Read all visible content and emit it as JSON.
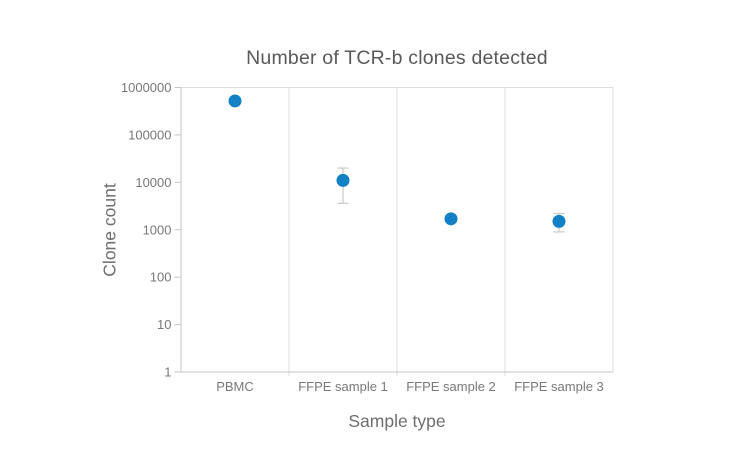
{
  "chart_data": {
    "type": "scatter",
    "title": "Number of TCR-b clones detected",
    "xlabel": "Sample type",
    "ylabel": "Clone count",
    "y_scale": "log",
    "ylim": [
      1,
      1000000
    ],
    "y_ticks": [
      1000000,
      100000,
      10000,
      1000,
      100,
      10,
      1
    ],
    "y_tick_labels": [
      "1000000",
      "100000",
      "10000",
      "1000",
      "100",
      "10",
      "1"
    ],
    "categories": [
      "PBMC",
      "FFPE sample 1",
      "FFPE sample 2",
      "FFPE sample 3"
    ],
    "series": [
      {
        "name": "Clone count",
        "values": [
          520000,
          11000,
          1700,
          1500
        ],
        "error_low": [
          null,
          3600,
          null,
          900
        ],
        "error_high": [
          null,
          20000,
          null,
          2200
        ]
      }
    ],
    "grid": "vertical-category-separators-only",
    "legend_position": "none"
  },
  "colors": {
    "marker": "#1280c5",
    "frame": "#c6c6c6",
    "separator": "#dedede",
    "error_bar": "#c9c9c9",
    "title_text": "#58595b",
    "axis_title_text": "#6d6e71",
    "tick_text": "#77787b",
    "background": "#ffffff"
  }
}
